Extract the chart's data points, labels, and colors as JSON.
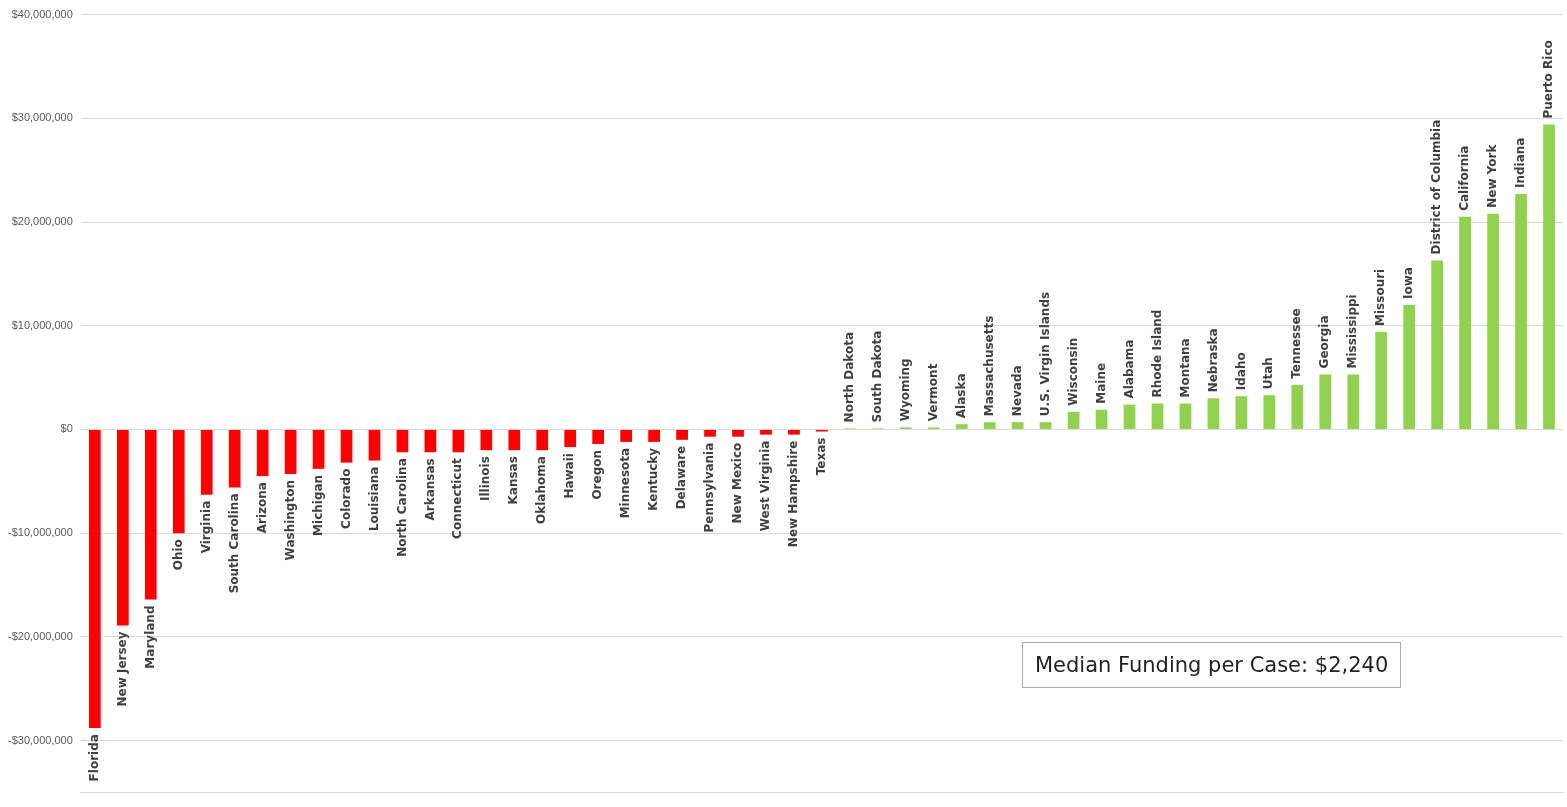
{
  "chart_data": {
    "type": "bar",
    "categories": [
      "Florida",
      "New Jersey",
      "Maryland",
      "Ohio",
      "Virginia",
      "South Carolina",
      "Arizona",
      "Washington",
      "Michigan",
      "Colorado",
      "Louisiana",
      "North Carolina",
      "Arkansas",
      "Connecticut",
      "Illinois",
      "Kansas",
      "Oklahoma",
      "Hawaii",
      "Oregon",
      "Minnesota",
      "Kentucky",
      "Delaware",
      "Pennsylvania",
      "New Mexico",
      "West Virginia",
      "New Hampshire",
      "Texas",
      "North Dakota",
      "South Dakota",
      "Wyoming",
      "Vermont",
      "Alaska",
      "Massachusetts",
      "Nevada",
      "U.S. Virgin Islands",
      "Wisconsin",
      "Maine",
      "Alabama",
      "Rhode Island",
      "Montana",
      "Nebraska",
      "Idaho",
      "Utah",
      "Tennessee",
      "Georgia",
      "Mississippi",
      "Missouri",
      "Iowa",
      "District of Columbia",
      "California",
      "New York",
      "Indiana",
      "Puerto Rico"
    ],
    "values": [
      -28800000,
      -18900000,
      -16400000,
      -10000000,
      -6300000,
      -5600000,
      -4500000,
      -4300000,
      -3800000,
      -3200000,
      -3000000,
      -2200000,
      -2200000,
      -2200000,
      -2000000,
      -2000000,
      -2000000,
      -1700000,
      -1400000,
      -1200000,
      -1200000,
      -1000000,
      -700000,
      -700000,
      -500000,
      -500000,
      -200000,
      100000,
      100000,
      200000,
      200000,
      500000,
      700000,
      700000,
      700000,
      1700000,
      1900000,
      2400000,
      2500000,
      2500000,
      3000000,
      3200000,
      3300000,
      4300000,
      5300000,
      5300000,
      9400000,
      12000000,
      16300000,
      20500000,
      20800000,
      22700000,
      29400000
    ],
    "colors": [
      "#ff0000",
      "#ff0000",
      "#ff0000",
      "#ff0000",
      "#ff0000",
      "#ff0000",
      "#ff0000",
      "#ff0000",
      "#ff0000",
      "#ff0000",
      "#ff0000",
      "#ff0000",
      "#ff0000",
      "#ff0000",
      "#ff0000",
      "#ff0000",
      "#ff0000",
      "#ff0000",
      "#ff0000",
      "#ff0000",
      "#ff0000",
      "#ff0000",
      "#ff0000",
      "#ff0000",
      "#ff0000",
      "#ff0000",
      "#ff0000",
      "#92d050",
      "#92d050",
      "#92d050",
      "#92d050",
      "#92d050",
      "#92d050",
      "#92d050",
      "#92d050",
      "#92d050",
      "#92d050",
      "#92d050",
      "#92d050",
      "#92d050",
      "#92d050",
      "#92d050",
      "#92d050",
      "#92d050",
      "#92d050",
      "#92d050",
      "#92d050",
      "#92d050",
      "#92d050",
      "#92d050",
      "#92d050",
      "#92d050",
      "#92d050"
    ],
    "ylim": [
      -35000000,
      40000000
    ],
    "yticks": [
      {
        "value": -30000000,
        "label": "-$30,000,000"
      },
      {
        "value": -20000000,
        "label": "-$20,000,000"
      },
      {
        "value": -10000000,
        "label": "-$10,000,000"
      },
      {
        "value": 0,
        "label": "$0"
      },
      {
        "value": 10000000,
        "label": "$10,000,000"
      },
      {
        "value": 20000000,
        "label": "$20,000,000"
      },
      {
        "value": 30000000,
        "label": "$30,000,000"
      },
      {
        "value": 40000000,
        "label": "$40,000,000"
      }
    ],
    "grid": "y",
    "annotations": [
      "Median Funding per Case: $2,240"
    ]
  }
}
